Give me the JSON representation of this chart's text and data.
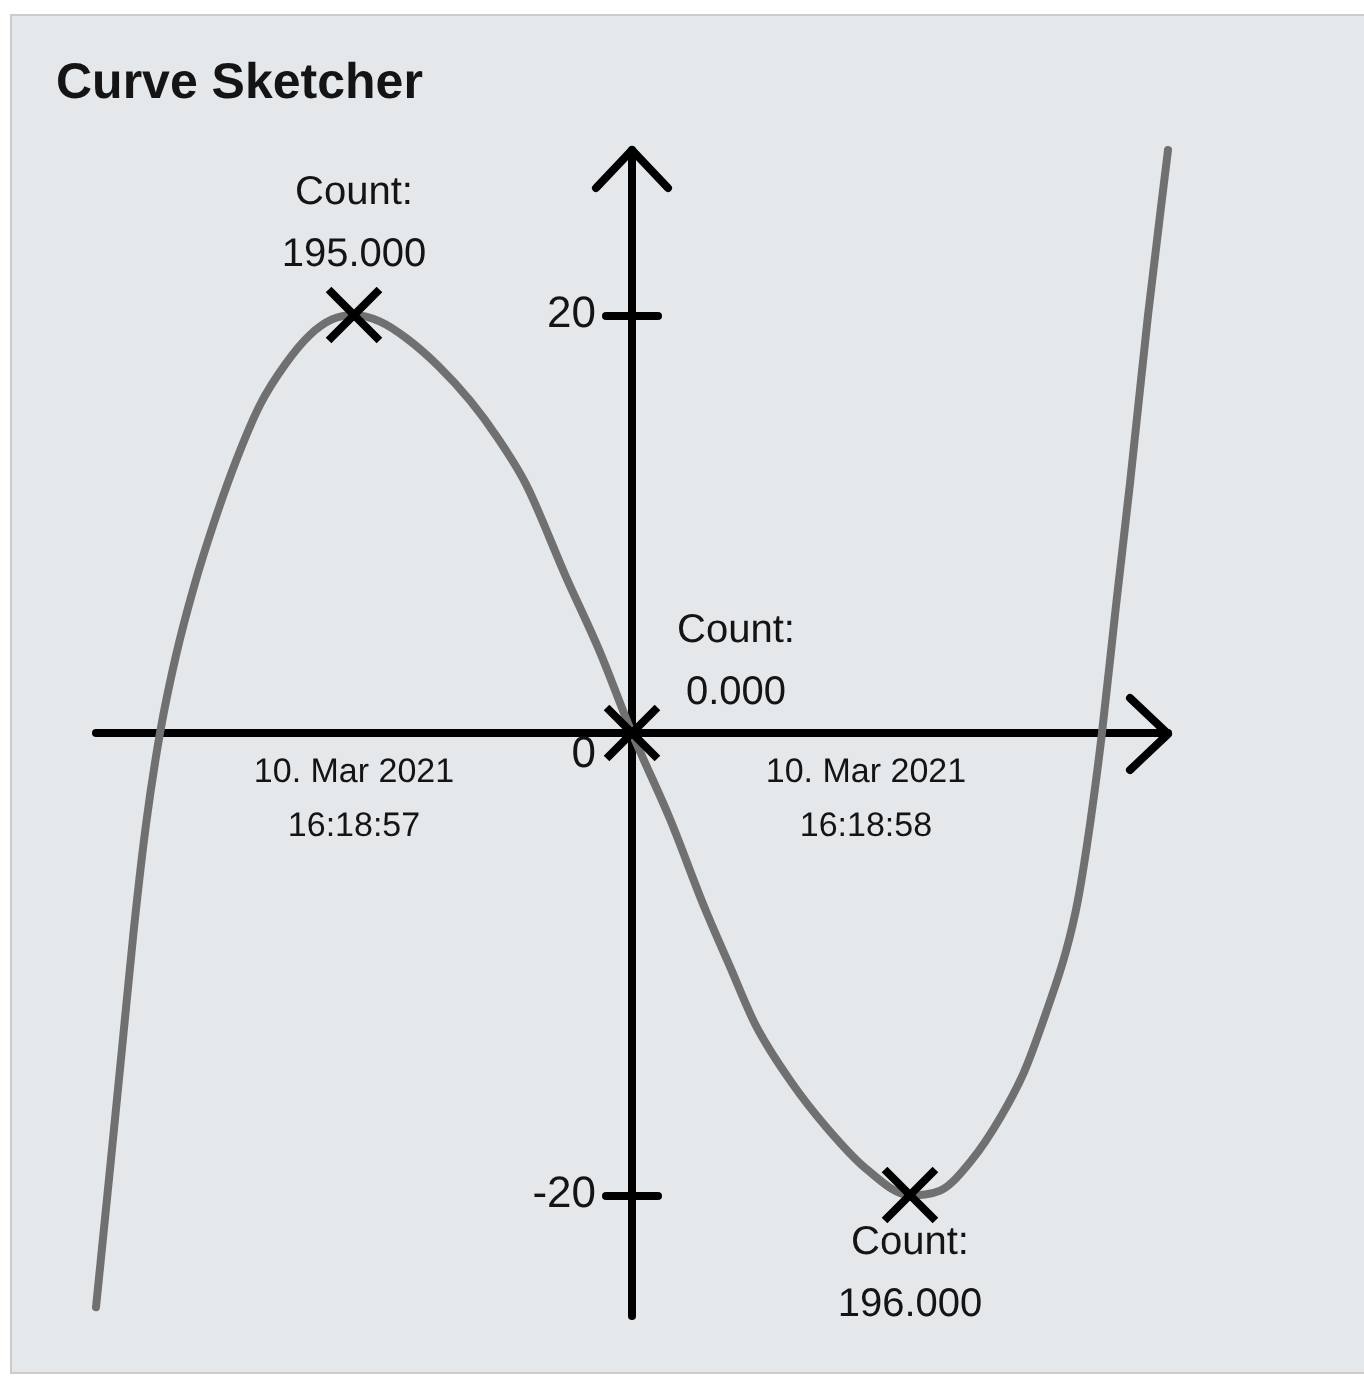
{
  "chart_data": {
    "type": "line",
    "title": "Curve Sketcher",
    "xlim": [
      "2021-03-10T16:18:56.496",
      "2021-03-10T16:18:58.590"
    ],
    "xticks": [
      {
        "value": "2021-03-10T16:18:57",
        "label": "10. Mar 2021\n16:18:57"
      },
      {
        "value": "2021-03-10T16:18:58",
        "label": "10. Mar 2021\n16:18:58"
      }
    ],
    "ylim": [
      -25.5,
      27.5
    ],
    "yticks": [
      -20,
      0,
      20
    ],
    "series": [
      {
        "color": "#707070",
        "x": [
          "2021-03-10T16:18:56.496",
          "2021-03-10T16:18:56.523",
          "2021-03-10T16:18:56.547",
          "2021-03-10T16:18:56.570",
          "2021-03-10T16:18:56.594",
          "2021-03-10T16:18:56.621",
          "2021-03-10T16:18:56.652",
          "2021-03-10T16:18:56.688",
          "2021-03-10T16:18:56.727",
          "2021-03-10T16:18:56.770",
          "2021-03-10T16:18:56.816",
          "2021-03-10T16:18:56.867",
          "2021-03-10T16:18:56.914",
          "2021-03-10T16:18:56.957",
          "2021-03-10T16:18:57",
          "2021-03-10T16:18:57.051",
          "2021-03-10T16:18:57.105",
          "2021-03-10T16:18:57.164",
          "2021-03-10T16:18:57.227",
          "2021-03-10T16:18:57.281",
          "2021-03-10T16:18:57.336",
          "2021-03-10T16:18:57.414",
          "2021-03-10T16:18:57.480",
          "2021-03-10T16:18:57.543",
          "2021-03-10T16:18:57.617",
          "2021-03-10T16:18:57.684",
          "2021-03-10T16:18:57.734",
          "2021-03-10T16:18:57.785",
          "2021-03-10T16:18:57.855",
          "2021-03-10T16:18:57.922",
          "2021-03-10T16:18:58",
          "2021-03-10T16:18:58.086",
          "2021-03-10T16:18:58.145",
          "2021-03-10T16:18:58.207",
          "2021-03-10T16:18:58.262",
          "2021-03-10T16:18:58.309",
          "2021-03-10T16:18:58.355",
          "2021-03-10T16:18:58.391",
          "2021-03-10T16:18:58.414",
          "2021-03-10T16:18:58.438",
          "2021-03-10T16:18:58.461",
          "2021-03-10T16:18:58.488",
          "2021-03-10T16:18:58.516",
          "2021-03-10T16:18:58.551",
          "2021-03-10T16:18:58.590"
        ],
        "values": [
          -25.1,
          -18.9,
          -13.3,
          -7.9,
          -3.1,
          1.0,
          4.5,
          7.7,
          10.6,
          13.4,
          15.9,
          17.8,
          19.1,
          19.8,
          20.0,
          19.7,
          18.9,
          17.7,
          16.1,
          14.4,
          12.3,
          8.1,
          4.7,
          1.0,
          -2.9,
          -6.9,
          -9.6,
          -12.3,
          -14.9,
          -16.9,
          -18.8,
          -20.0,
          -19.8,
          -18.4,
          -16.5,
          -14.4,
          -11.5,
          -8.9,
          -6.6,
          -3.1,
          1.0,
          6.7,
          12.4,
          20.0,
          27.5
        ]
      },
      {
        "type": "scatter",
        "color": "#000000",
        "marker": "cross",
        "x": [
          "2021-03-10T16:18:57",
          "2021-03-10T16:18:57.543",
          "2021-03-10T16:18:58.086"
        ],
        "values": [
          20.0,
          1.0,
          -20.0
        ]
      }
    ],
    "annotations": [
      {
        "text": "Count:\n195.000",
        "x": "2021-03-10T16:18:57",
        "y": 20.0
      },
      {
        "text": "Count:\n0.000",
        "x": "2021-03-10T16:18:57.543",
        "y": 1.0
      },
      {
        "text": "Count:\n196.000",
        "x": "2021-03-10T16:18:58.086",
        "y": -20.0
      }
    ]
  }
}
